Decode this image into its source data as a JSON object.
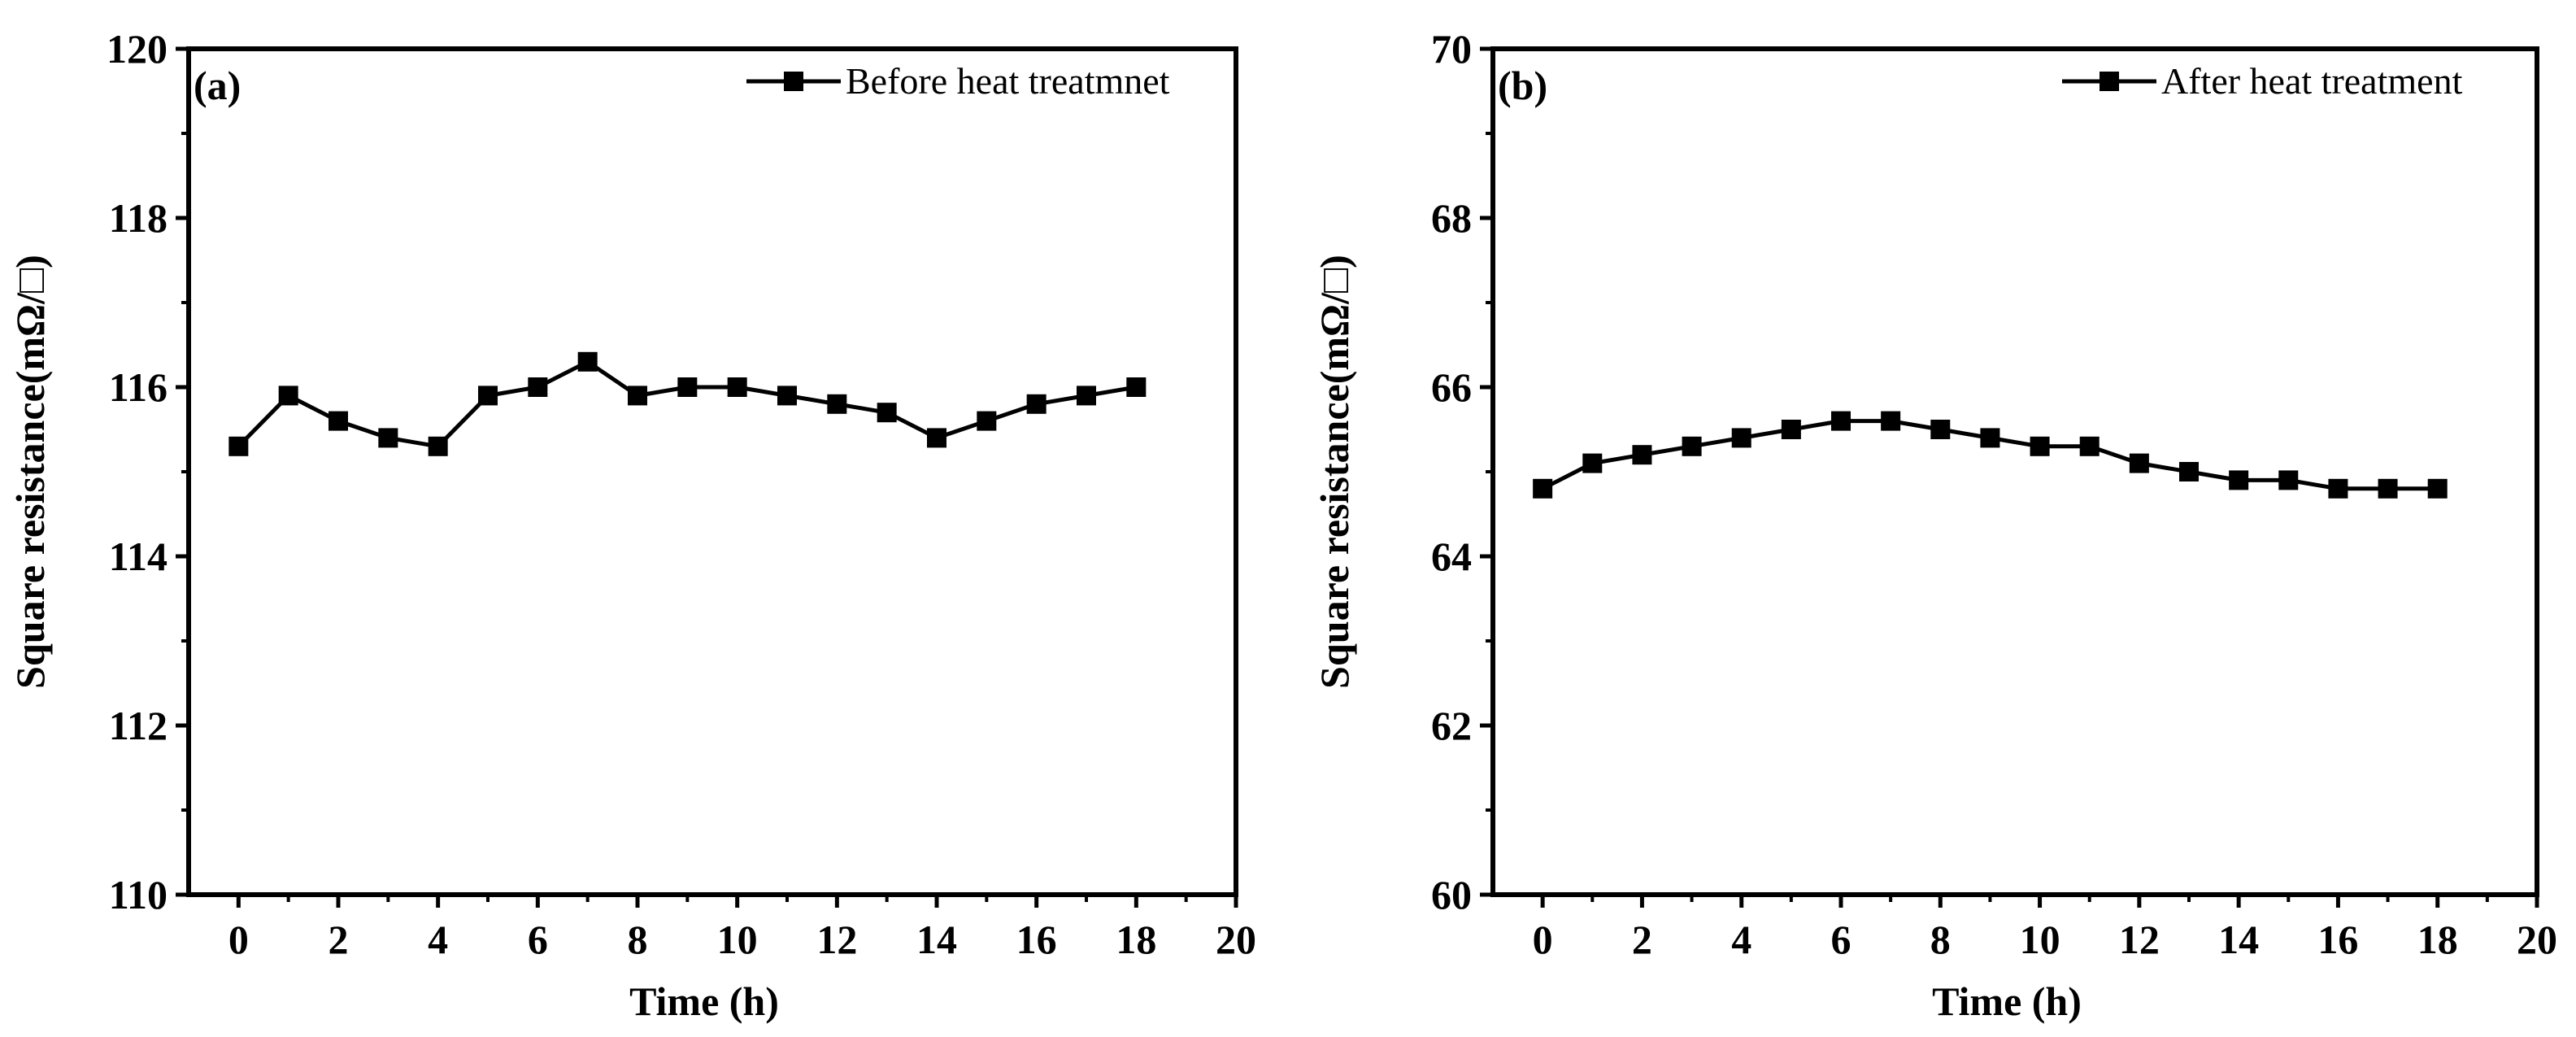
{
  "chart_data": [
    {
      "type": "line",
      "panel_label": "(a)",
      "xlabel": "Time (h)",
      "ylabel": "Square resistance(mΩ/□)",
      "xlim": [
        -1,
        20
      ],
      "ylim": [
        110,
        120
      ],
      "xticks": [
        0,
        2,
        4,
        6,
        8,
        10,
        12,
        14,
        16,
        18,
        20
      ],
      "yticks": [
        110,
        112,
        114,
        116,
        118,
        120
      ],
      "legend_position": "top-right",
      "series": [
        {
          "name": "Before heat treatmnet",
          "marker": "square",
          "color": "#000000",
          "x": [
            0,
            1,
            2,
            3,
            4,
            5,
            6,
            7,
            8,
            9,
            10,
            11,
            12,
            13,
            14,
            15,
            16,
            17,
            18
          ],
          "values": [
            115.3,
            115.9,
            115.6,
            115.4,
            115.3,
            115.9,
            116.0,
            116.3,
            115.9,
            116.0,
            116.0,
            115.9,
            115.8,
            115.7,
            115.4,
            115.6,
            115.8,
            115.9,
            116.0
          ]
        }
      ]
    },
    {
      "type": "line",
      "panel_label": "(b)",
      "xlabel": "Time (h)",
      "ylabel": "Square resistance(mΩ/□)",
      "xlim": [
        -1,
        20
      ],
      "ylim": [
        60,
        70
      ],
      "xticks": [
        0,
        2,
        4,
        6,
        8,
        10,
        12,
        14,
        16,
        18,
        20
      ],
      "yticks": [
        60,
        62,
        64,
        66,
        68,
        70
      ],
      "legend_position": "top-right",
      "series": [
        {
          "name": "After heat treatment",
          "marker": "square",
          "color": "#000000",
          "x": [
            0,
            1,
            2,
            3,
            4,
            5,
            6,
            7,
            8,
            9,
            10,
            11,
            12,
            13,
            14,
            15,
            16,
            17,
            18
          ],
          "values": [
            64.8,
            65.1,
            65.2,
            65.3,
            65.4,
            65.5,
            65.6,
            65.6,
            65.5,
            65.4,
            65.3,
            65.3,
            65.1,
            65.0,
            64.9,
            64.9,
            64.8,
            64.8,
            64.8
          ]
        }
      ]
    }
  ]
}
